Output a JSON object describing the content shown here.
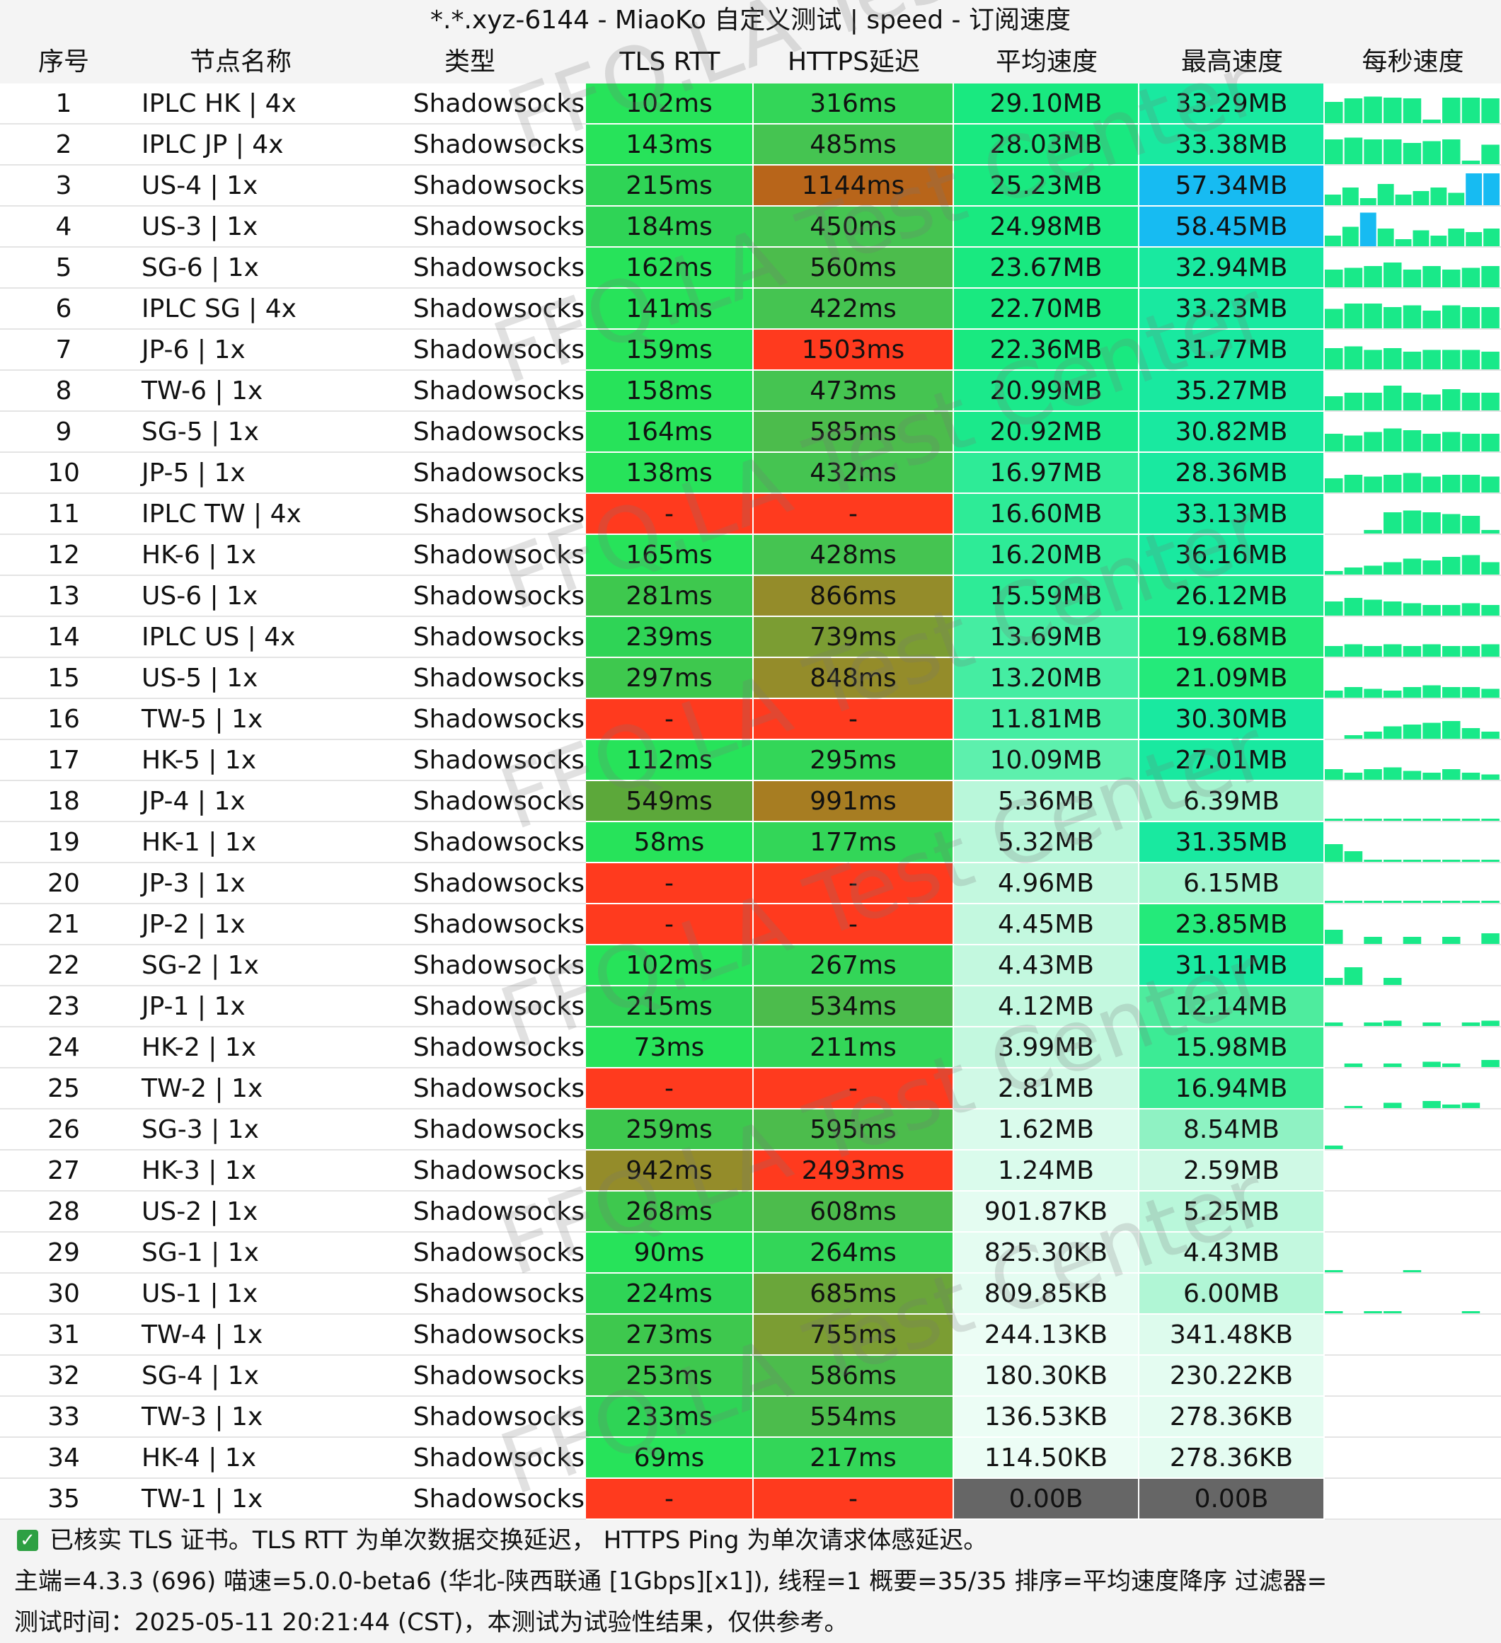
{
  "title": "*.*.xyz-6144 - MiaoKo 自定义测试 | speed - 订阅速度",
  "headers": {
    "idx": "序号",
    "name": "节点名称",
    "type": "类型",
    "tls": "TLS RTT",
    "https": "HTTPS延迟",
    "avg": "平均速度",
    "max": "最高速度",
    "spark": "每秒速度"
  },
  "watermark": "FFQ.LA Test Center",
  "rows": [
    {
      "idx": "1",
      "name": "IPLC HK | 4x",
      "type": "Shadowsocks",
      "tls": "102ms",
      "https": "316ms",
      "avg": "29.10MB",
      "max": "33.29MB",
      "tls_color": "#27e35a",
      "https_color": "#33d658",
      "avg_color": "#19e980",
      "max_color": "#19e9a0",
      "spark": [
        0.6,
        0.7,
        0.75,
        0.72,
        0.7,
        0.1,
        0.72,
        0.72,
        0.7
      ]
    },
    {
      "idx": "2",
      "name": "IPLC JP | 4x",
      "type": "Shadowsocks",
      "tls": "143ms",
      "https": "485ms",
      "avg": "28.03MB",
      "max": "33.38MB",
      "tls_color": "#27e35a",
      "https_color": "#45c451",
      "avg_color": "#19e980",
      "max_color": "#19e9a0",
      "spark": [
        0.7,
        0.75,
        0.7,
        0.7,
        0.6,
        0.65,
        0.7,
        0.1,
        0.55
      ]
    },
    {
      "idx": "3",
      "name": "US-4 | 1x",
      "type": "Shadowsocks",
      "tls": "215ms",
      "https": "1144ms",
      "avg": "25.23MB",
      "max": "57.34MB",
      "tls_color": "#2fd456",
      "https_color": "#b8651a",
      "avg_color": "#19e980",
      "max_color": "#17bbf2",
      "spark": [
        0.3,
        0.5,
        0.2,
        0.6,
        0.3,
        0.4,
        0.5,
        0.35,
        0.9,
        0.9
      ]
    },
    {
      "idx": "4",
      "name": "US-3 | 1x",
      "type": "Shadowsocks",
      "tls": "184ms",
      "https": "450ms",
      "avg": "24.98MB",
      "max": "58.45MB",
      "tls_color": "#2fd456",
      "https_color": "#45c451",
      "avg_color": "#19e980",
      "max_color": "#17bbf2",
      "spark": [
        0.3,
        0.55,
        0.95,
        0.5,
        0.2,
        0.45,
        0.3,
        0.5,
        0.4,
        0.5
      ]
    },
    {
      "idx": "5",
      "name": "SG-6 | 1x",
      "type": "Shadowsocks",
      "tls": "162ms",
      "https": "560ms",
      "avg": "23.67MB",
      "max": "32.94MB",
      "tls_color": "#27e35a",
      "https_color": "#4cbc4c",
      "avg_color": "#19e980",
      "max_color": "#19e9a0",
      "spark": [
        0.5,
        0.55,
        0.6,
        0.7,
        0.5,
        0.6,
        0.5,
        0.55,
        0.6
      ]
    },
    {
      "idx": "6",
      "name": "IPLC SG | 4x",
      "type": "Shadowsocks",
      "tls": "141ms",
      "https": "422ms",
      "avg": "22.70MB",
      "max": "33.23MB",
      "tls_color": "#27e35a",
      "https_color": "#45c451",
      "avg_color": "#19e980",
      "max_color": "#19e9a0",
      "spark": [
        0.55,
        0.7,
        0.7,
        0.6,
        0.65,
        0.5,
        0.65,
        0.6,
        0.6
      ]
    },
    {
      "idx": "7",
      "name": "JP-6 | 1x",
      "type": "Shadowsocks",
      "tls": "159ms",
      "https": "1503ms",
      "avg": "22.36MB",
      "max": "31.77MB",
      "tls_color": "#27e35a",
      "https_color": "#ff3a1e",
      "avg_color": "#19e980",
      "max_color": "#19e9a0",
      "spark": [
        0.6,
        0.65,
        0.55,
        0.6,
        0.5,
        0.55,
        0.55,
        0.55,
        0.5
      ]
    },
    {
      "idx": "8",
      "name": "TW-6 | 1x",
      "type": "Shadowsocks",
      "tls": "158ms",
      "https": "473ms",
      "avg": "20.99MB",
      "max": "35.27MB",
      "tls_color": "#27e35a",
      "https_color": "#45c451",
      "avg_color": "#1be98b",
      "max_color": "#19e9a0",
      "spark": [
        0.4,
        0.5,
        0.5,
        0.7,
        0.5,
        0.45,
        0.6,
        0.5,
        0.5
      ]
    },
    {
      "idx": "9",
      "name": "SG-5 | 1x",
      "type": "Shadowsocks",
      "tls": "164ms",
      "https": "585ms",
      "avg": "20.92MB",
      "max": "30.82MB",
      "tls_color": "#27e35a",
      "https_color": "#4cbc4c",
      "avg_color": "#1be98b",
      "max_color": "#19e9a0",
      "spark": [
        0.5,
        0.45,
        0.55,
        0.65,
        0.6,
        0.5,
        0.55,
        0.5,
        0.5
      ]
    },
    {
      "idx": "10",
      "name": "JP-5 | 1x",
      "type": "Shadowsocks",
      "tls": "138ms",
      "https": "432ms",
      "avg": "16.97MB",
      "max": "28.36MB",
      "tls_color": "#27e35a",
      "https_color": "#45c451",
      "avg_color": "#2eeb97",
      "max_color": "#19e9a0",
      "spark": [
        0.4,
        0.5,
        0.45,
        0.5,
        0.55,
        0.45,
        0.5,
        0.5,
        0.45
      ]
    },
    {
      "idx": "11",
      "name": "IPLC TW | 4x",
      "type": "Shadowsocks",
      "tls": "-",
      "https": "-",
      "avg": "16.60MB",
      "max": "33.13MB",
      "tls_color": "#ff3a1e",
      "https_color": "#ff3a1e",
      "avg_color": "#2eeb97",
      "max_color": "#19e9a0",
      "spark": [
        0,
        0,
        0.1,
        0.6,
        0.65,
        0.6,
        0.55,
        0.5,
        0.1
      ]
    },
    {
      "idx": "12",
      "name": "HK-6 | 1x",
      "type": "Shadowsocks",
      "tls": "165ms",
      "https": "428ms",
      "avg": "16.20MB",
      "max": "36.16MB",
      "tls_color": "#27e35a",
      "https_color": "#45c451",
      "avg_color": "#2eeb97",
      "max_color": "#19e9a0",
      "spark": [
        0.1,
        0.2,
        0.25,
        0.35,
        0.45,
        0.4,
        0.5,
        0.55,
        0.35
      ]
    },
    {
      "idx": "13",
      "name": "US-6 | 1x",
      "type": "Shadowsocks",
      "tls": "281ms",
      "https": "866ms",
      "avg": "15.59MB",
      "max": "26.12MB",
      "tls_color": "#3ec84e",
      "https_color": "#948c2a",
      "avg_color": "#2eeb97",
      "max_color": "#22ea90",
      "spark": [
        0.4,
        0.5,
        0.45,
        0.4,
        0.35,
        0.3,
        0.3,
        0.35,
        0.3
      ]
    },
    {
      "idx": "14",
      "name": "IPLC US | 4x",
      "type": "Shadowsocks",
      "tls": "239ms",
      "https": "739ms",
      "avg": "13.69MB",
      "max": "19.68MB",
      "tls_color": "#2fd456",
      "https_color": "#7b9d33",
      "avg_color": "#45eda2",
      "max_color": "#24ea7a",
      "spark": [
        0.3,
        0.35,
        0.3,
        0.35,
        0.3,
        0.35,
        0.3,
        0.3,
        0.35
      ]
    },
    {
      "idx": "15",
      "name": "US-5 | 1x",
      "type": "Shadowsocks",
      "tls": "297ms",
      "https": "848ms",
      "avg": "13.20MB",
      "max": "21.09MB",
      "tls_color": "#3ec84e",
      "https_color": "#948c2a",
      "avg_color": "#45eda2",
      "max_color": "#24ea7a",
      "spark": [
        0.2,
        0.3,
        0.25,
        0.2,
        0.3,
        0.35,
        0.3,
        0.3,
        0.25
      ]
    },
    {
      "idx": "16",
      "name": "TW-5 | 1x",
      "type": "Shadowsocks",
      "tls": "-",
      "https": "-",
      "avg": "11.81MB",
      "max": "30.30MB",
      "tls_color": "#ff3a1e",
      "https_color": "#ff3a1e",
      "avg_color": "#45eda2",
      "max_color": "#19e9a0",
      "spark": [
        0,
        0.1,
        0.2,
        0.35,
        0.4,
        0.45,
        0.5,
        0.3,
        0.2
      ]
    },
    {
      "idx": "17",
      "name": "HK-5 | 1x",
      "type": "Shadowsocks",
      "tls": "112ms",
      "https": "295ms",
      "avg": "10.09MB",
      "max": "27.01MB",
      "tls_color": "#27e35a",
      "https_color": "#33d658",
      "avg_color": "#5df0ad",
      "max_color": "#19e9a0",
      "spark": [
        0.3,
        0.2,
        0.3,
        0.35,
        0.25,
        0.2,
        0.3,
        0.2,
        0.15
      ]
    },
    {
      "idx": "18",
      "name": "JP-4 | 1x",
      "type": "Shadowsocks",
      "tls": "549ms",
      "https": "991ms",
      "avg": "5.36MB",
      "max": "6.39MB",
      "tls_color": "#5ca83a",
      "https_color": "#a77d22",
      "avg_color": "#b9f7da",
      "max_color": "#a6f5d0",
      "spark": [
        0.05,
        0.05,
        0.05,
        0.05,
        0.05,
        0.05,
        0.05,
        0.05,
        0.05
      ]
    },
    {
      "idx": "19",
      "name": "HK-1 | 1x",
      "type": "Shadowsocks",
      "tls": "58ms",
      "https": "177ms",
      "avg": "5.32MB",
      "max": "31.35MB",
      "tls_color": "#27e35a",
      "https_color": "#33d658",
      "avg_color": "#b9f7da",
      "max_color": "#19e9a0",
      "spark": [
        0.5,
        0.3,
        0.05,
        0.05,
        0.05,
        0.05,
        0.05,
        0.05,
        0.05
      ]
    },
    {
      "idx": "20",
      "name": "JP-3 | 1x",
      "type": "Shadowsocks",
      "tls": "-",
      "https": "-",
      "avg": "4.96MB",
      "max": "6.15MB",
      "tls_color": "#ff3a1e",
      "https_color": "#ff3a1e",
      "avg_color": "#c3f8df",
      "max_color": "#a6f5d0",
      "spark": [
        0.05,
        0.05,
        0.05,
        0.05,
        0.05,
        0.05,
        0.05,
        0.05,
        0.05
      ]
    },
    {
      "idx": "21",
      "name": "JP-2 | 1x",
      "type": "Shadowsocks",
      "tls": "-",
      "https": "-",
      "avg": "4.45MB",
      "max": "23.85MB",
      "tls_color": "#ff3a1e",
      "https_color": "#ff3a1e",
      "avg_color": "#c3f8df",
      "max_color": "#24ea7a",
      "spark": [
        0.4,
        0,
        0.2,
        0,
        0.2,
        0,
        0.2,
        0,
        0.3
      ]
    },
    {
      "idx": "22",
      "name": "SG-2 | 1x",
      "type": "Shadowsocks",
      "tls": "102ms",
      "https": "267ms",
      "avg": "4.43MB",
      "max": "31.11MB",
      "tls_color": "#27e35a",
      "https_color": "#33d658",
      "avg_color": "#c3f8df",
      "max_color": "#19e9a0",
      "spark": [
        0.2,
        0.5,
        0,
        0.2,
        0,
        0,
        0,
        0,
        0
      ]
    },
    {
      "idx": "23",
      "name": "JP-1 | 1x",
      "type": "Shadowsocks",
      "tls": "215ms",
      "https": "534ms",
      "avg": "4.12MB",
      "max": "12.14MB",
      "tls_color": "#2fd456",
      "https_color": "#4cbc4c",
      "avg_color": "#c3f8df",
      "max_color": "#4eec9e",
      "spark": [
        0.1,
        0,
        0.1,
        0.15,
        0,
        0.1,
        0,
        0.1,
        0.15
      ]
    },
    {
      "idx": "24",
      "name": "HK-2 | 1x",
      "type": "Shadowsocks",
      "tls": "73ms",
      "https": "211ms",
      "avg": "3.99MB",
      "max": "15.98MB",
      "tls_color": "#27e35a",
      "https_color": "#33d658",
      "avg_color": "#c3f8df",
      "max_color": "#3ceb95",
      "spark": [
        0,
        0.1,
        0,
        0.1,
        0,
        0.15,
        0.1,
        0,
        0.2
      ]
    },
    {
      "idx": "25",
      "name": "TW-2 | 1x",
      "type": "Shadowsocks",
      "tls": "-",
      "https": "-",
      "avg": "2.81MB",
      "max": "16.94MB",
      "tls_color": "#ff3a1e",
      "https_color": "#ff3a1e",
      "avg_color": "#d0f9e6",
      "max_color": "#3ceb95",
      "spark": [
        0,
        0.05,
        0,
        0.15,
        0,
        0.2,
        0.1,
        0.15,
        0
      ]
    },
    {
      "idx": "26",
      "name": "SG-3 | 1x",
      "type": "Shadowsocks",
      "tls": "259ms",
      "https": "595ms",
      "avg": "1.62MB",
      "max": "8.54MB",
      "tls_color": "#3ec84e",
      "https_color": "#4cbc4c",
      "avg_color": "#dafbec",
      "max_color": "#8ff2c3",
      "spark": [
        0.1,
        0,
        0,
        0,
        0,
        0,
        0,
        0,
        0
      ]
    },
    {
      "idx": "27",
      "name": "HK-3 | 1x",
      "type": "Shadowsocks",
      "tls": "942ms",
      "https": "2493ms",
      "avg": "1.24MB",
      "max": "2.59MB",
      "tls_color": "#948c2a",
      "https_color": "#ff3a1e",
      "avg_color": "#dafbec",
      "max_color": "#cff9e5",
      "spark": [
        0,
        0,
        0,
        0,
        0,
        0,
        0,
        0,
        0
      ]
    },
    {
      "idx": "28",
      "name": "US-2 | 1x",
      "type": "Shadowsocks",
      "tls": "268ms",
      "https": "608ms",
      "avg": "901.87KB",
      "max": "5.25MB",
      "tls_color": "#3ec84e",
      "https_color": "#4cbc4c",
      "avg_color": "#e4fcf1",
      "max_color": "#b9f7da",
      "spark": [
        0,
        0,
        0,
        0,
        0,
        0,
        0,
        0,
        0
      ]
    },
    {
      "idx": "29",
      "name": "SG-1 | 1x",
      "type": "Shadowsocks",
      "tls": "90ms",
      "https": "264ms",
      "avg": "825.30KB",
      "max": "4.43MB",
      "tls_color": "#27e35a",
      "https_color": "#33d658",
      "avg_color": "#e4fcf1",
      "max_color": "#c3f8df",
      "spark": [
        0.05,
        0,
        0,
        0,
        0.05,
        0,
        0,
        0,
        0
      ]
    },
    {
      "idx": "30",
      "name": "US-1 | 1x",
      "type": "Shadowsocks",
      "tls": "224ms",
      "https": "685ms",
      "avg": "809.85KB",
      "max": "6.00MB",
      "tls_color": "#2fd456",
      "https_color": "#6aa63a",
      "avg_color": "#e4fcf1",
      "max_color": "#b0f6d5",
      "spark": [
        0.05,
        0,
        0.05,
        0.05,
        0,
        0,
        0,
        0.05,
        0
      ]
    },
    {
      "idx": "31",
      "name": "TW-4 | 1x",
      "type": "Shadowsocks",
      "tls": "273ms",
      "https": "755ms",
      "avg": "244.13KB",
      "max": "341.48KB",
      "tls_color": "#3ec84e",
      "https_color": "#7b9d33",
      "avg_color": "#ecfdf5",
      "max_color": "#ddfbed",
      "spark": [
        0,
        0,
        0,
        0,
        0,
        0,
        0,
        0,
        0
      ]
    },
    {
      "idx": "32",
      "name": "SG-4 | 1x",
      "type": "Shadowsocks",
      "tls": "253ms",
      "https": "586ms",
      "avg": "180.30KB",
      "max": "230.22KB",
      "tls_color": "#3ec84e",
      "https_color": "#4cbc4c",
      "avg_color": "#ecfdf5",
      "max_color": "#e4fcf1",
      "spark": [
        0,
        0,
        0,
        0,
        0,
        0,
        0,
        0,
        0
      ]
    },
    {
      "idx": "33",
      "name": "TW-3 | 1x",
      "type": "Shadowsocks",
      "tls": "233ms",
      "https": "554ms",
      "avg": "136.53KB",
      "max": "278.36KB",
      "tls_color": "#2fd456",
      "https_color": "#4cbc4c",
      "avg_color": "#ecfdf5",
      "max_color": "#e4fcf1",
      "spark": [
        0,
        0,
        0,
        0,
        0,
        0,
        0,
        0,
        0
      ]
    },
    {
      "idx": "34",
      "name": "HK-4 | 1x",
      "type": "Shadowsocks",
      "tls": "69ms",
      "https": "217ms",
      "avg": "114.50KB",
      "max": "278.36KB",
      "tls_color": "#27e35a",
      "https_color": "#33d658",
      "avg_color": "#ecfdf5",
      "max_color": "#e4fcf1",
      "spark": [
        0,
        0,
        0,
        0,
        0,
        0,
        0,
        0,
        0
      ]
    },
    {
      "idx": "35",
      "name": "TW-1 | 1x",
      "type": "Shadowsocks",
      "tls": "-",
      "https": "-",
      "avg": "0.00B",
      "max": "0.00B",
      "tls_color": "#ff3a1e",
      "https_color": "#ff3a1e",
      "avg_color": "#666666",
      "max_color": "#666666",
      "spark": [
        0,
        0,
        0,
        0,
        0,
        0,
        0,
        0,
        0
      ]
    }
  ],
  "footer": {
    "line1": "已核实 TLS 证书。TLS RTT 为单次数据交换延迟， HTTPS Ping 为单次请求体感延迟。",
    "line2": "主端=4.3.3 (696) 喵速=5.0.0-beta6 (华北-陕西联通 [1Gbps][x1]), 线程=1 概要=35/35 排序=平均速度降序 过滤器=",
    "line3": "测试时间：2025-05-11 20:21:44 (CST)，本测试为试验性结果，仅供参考。",
    "check_icon": "checkbox-checked-icon"
  },
  "colors": {
    "spark_green": "#19e989",
    "spark_blue": "#17bbf2",
    "header_bg": "#f4f4f4"
  }
}
